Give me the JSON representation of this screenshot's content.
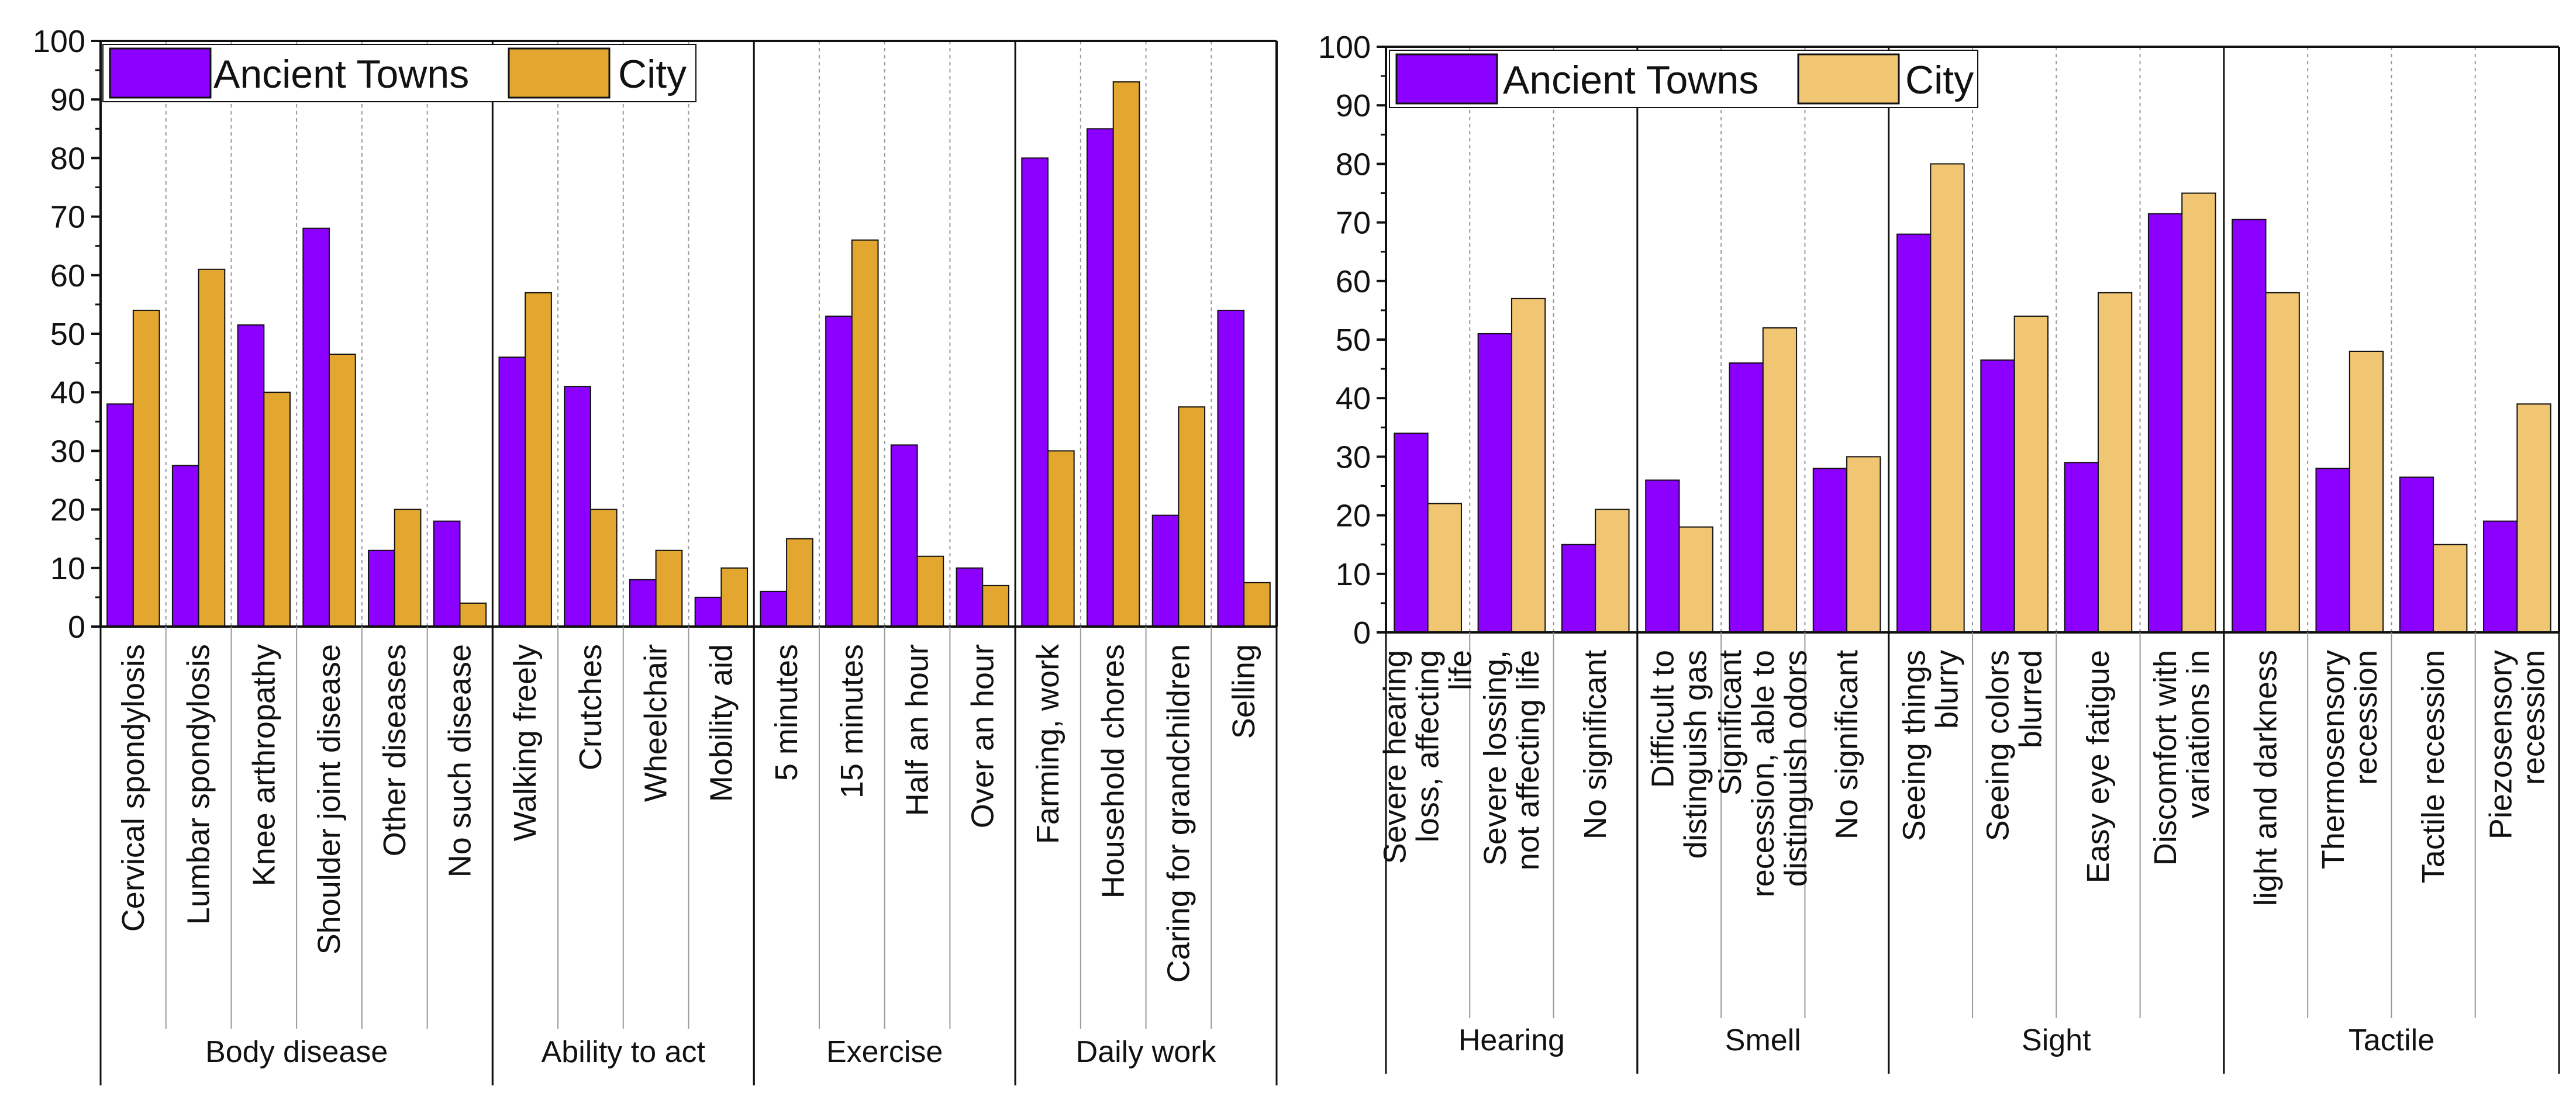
{
  "colors": {
    "ancient": "#8B00FF",
    "city_left": "#E3A72F",
    "city_right": "#F0C672",
    "axis": "#111111",
    "grid": "#999999"
  },
  "chart_data": [
    {
      "type": "bar",
      "legend": {
        "placement": "top-left",
        "entries": [
          "Ancient Towns",
          "City"
        ]
      },
      "ylim": [
        0,
        100
      ],
      "yticks": [
        "0",
        "10",
        "20",
        "30",
        "40",
        "50",
        "60",
        "70",
        "80",
        "90",
        "100"
      ],
      "groups": [
        {
          "name": "Body disease",
          "categories": [
            "Cervical spondylosis",
            "Lumbar spondylosis",
            "Knee arthropathy",
            "Shoulder joint disease",
            "Other diseases",
            "No such disease"
          ]
        },
        {
          "name": "Ability to act",
          "categories": [
            "Walking freely",
            "Crutches",
            "Wheelchair",
            "Mobility aid"
          ]
        },
        {
          "name": "Exercise",
          "categories": [
            "5 minutes",
            "15 minutes",
            "Half an hour",
            "Over an hour"
          ]
        },
        {
          "name": "Daily work",
          "categories": [
            "Farming, work",
            "Household chores",
            "Caring for grandchildren",
            "Selling"
          ]
        }
      ],
      "series": [
        {
          "name": "Ancient Towns",
          "values": [
            38,
            27.5,
            51.5,
            68,
            13,
            18,
            46,
            41,
            8,
            5,
            6,
            53,
            31,
            10,
            80,
            85,
            19,
            54
          ]
        },
        {
          "name": "City",
          "values": [
            54,
            61,
            40,
            46.5,
            20,
            4,
            57,
            20,
            13,
            10,
            15,
            66,
            12,
            7,
            30,
            93,
            37.5,
            7.5
          ]
        }
      ]
    },
    {
      "type": "bar",
      "legend": {
        "placement": "top-left",
        "entries": [
          "Ancient Towns",
          "City"
        ]
      },
      "ylim": [
        0,
        100
      ],
      "yticks": [
        "0",
        "10",
        "20",
        "30",
        "40",
        "50",
        "60",
        "70",
        "80",
        "90",
        "100"
      ],
      "groups": [
        {
          "name": "Hearing",
          "categories": [
            [
              "Severe hearing",
              "loss, affecting",
              "life"
            ],
            [
              "Severe lossing,",
              "not affecting life"
            ],
            [
              "No significant"
            ]
          ]
        },
        {
          "name": "Smell",
          "categories": [
            [
              "Difficult to",
              "distinguish gas"
            ],
            [
              "Significant",
              "recession, able to",
              "distinguish odors"
            ],
            [
              "No significant"
            ]
          ]
        },
        {
          "name": "Sight",
          "categories": [
            [
              "Seeing things",
              "blurry"
            ],
            [
              "Seeing colors",
              "blurred"
            ],
            [
              "Easy eye fatigue"
            ],
            [
              "Discomfort with",
              "variations in"
            ]
          ]
        },
        {
          "name": "Tactile",
          "categories": [
            [
              "light and darkness"
            ],
            [
              "Thermosensory",
              "recession"
            ],
            [
              "Tactile recession"
            ],
            [
              "Piezosensory",
              "recession"
            ]
          ]
        }
      ],
      "series": [
        {
          "name": "Ancient Towns",
          "values": [
            34,
            51,
            15,
            26,
            46,
            28,
            68,
            46.5,
            29,
            71.5,
            70.5,
            28,
            26.5,
            19
          ]
        },
        {
          "name": "City",
          "values": [
            22,
            57,
            21,
            18,
            52,
            30,
            80,
            54,
            58,
            75,
            58,
            48,
            15,
            39
          ]
        }
      ]
    }
  ]
}
